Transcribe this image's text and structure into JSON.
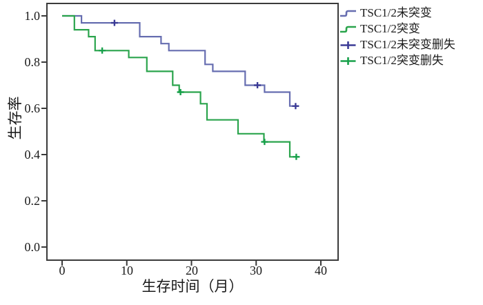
{
  "chart_data": {
    "type": "line",
    "subtype": "kaplan-meier-step-survival",
    "title": "",
    "xlabel": "生存时间（月）",
    "ylabel": "生存率",
    "xlim": [
      0,
      40
    ],
    "ylim": [
      0.0,
      1.0
    ],
    "grid": false,
    "frame_color": "#3a3a3a",
    "background": "#ffffff",
    "xticks": [
      0,
      10,
      20,
      30,
      40
    ],
    "xtick_labels": [
      "0",
      "10",
      "20",
      "30",
      "40"
    ],
    "yticks": [
      1.0,
      0.8,
      0.6,
      0.4,
      0.2,
      0.0
    ],
    "ytick_labels": [
      "1.0",
      "0.8",
      "0.6",
      "0.4",
      "0.2",
      "0.0"
    ],
    "series": [
      {
        "name": "TSC1/2未突变",
        "color": "#666db0",
        "censor_color": "#3b3b96",
        "steps": [
          [
            0,
            1.0
          ],
          [
            3.0,
            0.97
          ],
          [
            12.0,
            0.91
          ],
          [
            15.3,
            0.88
          ],
          [
            16.5,
            0.85
          ],
          [
            22.1,
            0.79
          ],
          [
            23.3,
            0.76
          ],
          [
            28.3,
            0.7
          ],
          [
            31.3,
            0.67
          ],
          [
            35.2,
            0.61
          ]
        ],
        "end": 36.6,
        "censors": [
          [
            8.1,
            0.97
          ],
          [
            30.2,
            0.7
          ],
          [
            36.1,
            0.61
          ]
        ]
      },
      {
        "name": "TSC1/2突变",
        "color": "#2aa44c",
        "censor_color": "#17a04a",
        "steps": [
          [
            0,
            1.0
          ],
          [
            1.9,
            0.94
          ],
          [
            4.1,
            0.91
          ],
          [
            5.1,
            0.85
          ],
          [
            10.3,
            0.82
          ],
          [
            13.1,
            0.76
          ],
          [
            17.1,
            0.7
          ],
          [
            18.1,
            0.67
          ],
          [
            21.4,
            0.62
          ],
          [
            22.4,
            0.55
          ],
          [
            27.2,
            0.49
          ],
          [
            31.2,
            0.455
          ],
          [
            35.2,
            0.39
          ]
        ],
        "end": 36.7,
        "censors": [
          [
            6.2,
            0.85
          ],
          [
            18.3,
            0.67
          ],
          [
            31.3,
            0.455
          ],
          [
            36.2,
            0.39
          ]
        ]
      }
    ],
    "legend": {
      "position": "top-right-outside",
      "items": [
        {
          "label": "TSC1/2未突变",
          "marker": "step",
          "color": "#666db0"
        },
        {
          "label": "TSC1/2突变",
          "marker": "step",
          "color": "#2aa44c"
        },
        {
          "label": "TSC1/2未突变删失",
          "marker": "plus",
          "color": "#3b3b96"
        },
        {
          "label": "TSC1/2突变删失",
          "marker": "plus",
          "color": "#17a04a"
        }
      ]
    }
  }
}
